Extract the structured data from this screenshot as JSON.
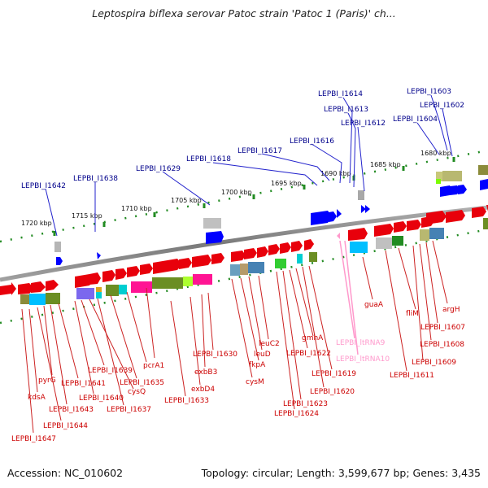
{
  "title": "Leptospira biflexa serovar Patoc strain 'Patoc 1 (Paris)' ch...",
  "footer": {
    "accession": "Accession: NC_010602",
    "topology": "Topology: circular; Length: 3,599,677 bp; Genes: 3,435"
  },
  "colors": {
    "forward_gene": "#e8000b",
    "reverse_gene": "#0000ff",
    "tRNA": "#ff99cc",
    "locus_blue": "#00008b",
    "locus_red": "#cc0000",
    "backbone": "#888888",
    "tick": "#228b22"
  },
  "scale_ticks": [
    "1720 kbp",
    "1715 kbp",
    "1710 kbp",
    "1705 kbp",
    "1700 kbp",
    "1695 kbp",
    "1690 kbp",
    "1685 kbp",
    "1680 kbp"
  ],
  "top_labels": [
    "LEPBI_I1642",
    "LEPBI_I1638",
    "LEPBI_I1629",
    "LEPBI_I1618",
    "LEPBI_I1617",
    "LEPBI_I1616",
    "LEPBI_I1614",
    "LEPBI_I1613",
    "LEPBI_I1612",
    "LEPBI_I1604",
    "LEPBI_I1603",
    "LEPBI_I1602"
  ],
  "bottom_labels": [
    "LEPBI_I1647",
    "kdsA",
    "LEPBI_I1644",
    "pyrG",
    "LEPBI_I1643",
    "LEPBI_I1641",
    "LEPBI_I1640",
    "LEPBI_I1639",
    "cysQ",
    "LEPBI_I1637",
    "LEPBI_I1635",
    "pcrA1",
    "LEPBI_I1633",
    "exbD4",
    "exbB3",
    "LEPBI_I1630",
    "cysM",
    "fkpA",
    "leuD",
    "leuC2",
    "LEPBI_I1624",
    "LEPBI_I1623",
    "LEPBI_I1622",
    "gmhA",
    "LEPBI_I1620",
    "LEPBI_I1619",
    "LEPBI_ltRNA9",
    "LEPBI_ltRNA10",
    "guaA",
    "LEPBI_I1611",
    "fliM",
    "LEPBI_I1609",
    "LEPBI_I1608",
    "LEPBI_I1607",
    "argH"
  ]
}
